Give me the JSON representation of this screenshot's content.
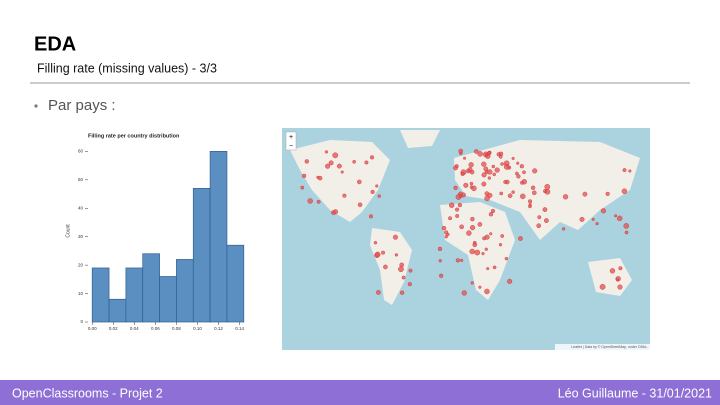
{
  "header": {
    "title": "EDA",
    "subtitle": "Filling rate (missing values) - 3/3"
  },
  "bullet": "Par pays :",
  "chart_data": {
    "type": "histogram",
    "title": "Filling rate per country distribution",
    "ylabel": "Count",
    "bins": [
      0,
      0.016,
      0.032,
      0.048,
      0.064,
      0.08,
      0.096,
      0.112,
      0.128,
      0.144
    ],
    "values": [
      19,
      8,
      19,
      24,
      16,
      22,
      47,
      60,
      27
    ],
    "color": "#5b8fc2",
    "xlim": [
      -0.004,
      0.148
    ],
    "xticks": [
      {
        "value": 0,
        "label": "0.00"
      },
      {
        "value": 0.02,
        "label": "0.02"
      },
      {
        "value": 0.04,
        "label": "0.04"
      },
      {
        "value": 0.06,
        "label": "0.06"
      },
      {
        "value": 0.08,
        "label": "0.08"
      },
      {
        "value": 0.1,
        "label": "0.10"
      },
      {
        "value": 0.12,
        "label": "0.12"
      },
      {
        "value": 0.14,
        "label": "0.14"
      }
    ],
    "ylim": [
      0,
      64
    ],
    "yticks": [
      0,
      10,
      20,
      30,
      40,
      50,
      60
    ]
  },
  "map": {
    "zoom_in": "+",
    "zoom_out": "−",
    "attribution": "Leaflet | Data by © OpenStreetMap, under ODbL."
  },
  "footer": {
    "left": "OpenClassrooms - Projet 2",
    "right": "Léo Guillaume - 31/01/2021"
  }
}
